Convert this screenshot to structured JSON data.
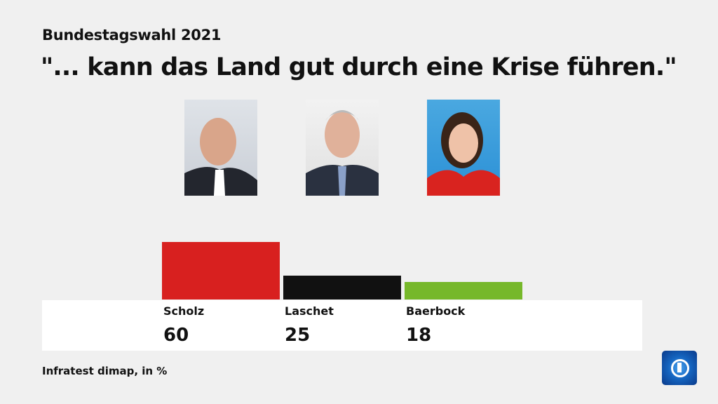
{
  "header": {
    "supertitle": "Bundestagswahl 2021",
    "title": "\"... kann das Land gut durch eine Krise führen.\""
  },
  "candidates": [
    {
      "name": "Scholz",
      "photo": "portrait-scholz"
    },
    {
      "name": "Laschet",
      "photo": "portrait-laschet"
    },
    {
      "name": "Baerbock",
      "photo": "portrait-baerbock"
    }
  ],
  "chart_data": {
    "type": "bar",
    "categories": [
      "Scholz",
      "Laschet",
      "Baerbock"
    ],
    "values": [
      60,
      25,
      18
    ],
    "colors": [
      "#d8201f",
      "#111111",
      "#76b82a"
    ],
    "unit": "%",
    "grid": false
  },
  "footer": {
    "source": "Infratest dimap, in %",
    "logo": "tagesschau-logo"
  }
}
